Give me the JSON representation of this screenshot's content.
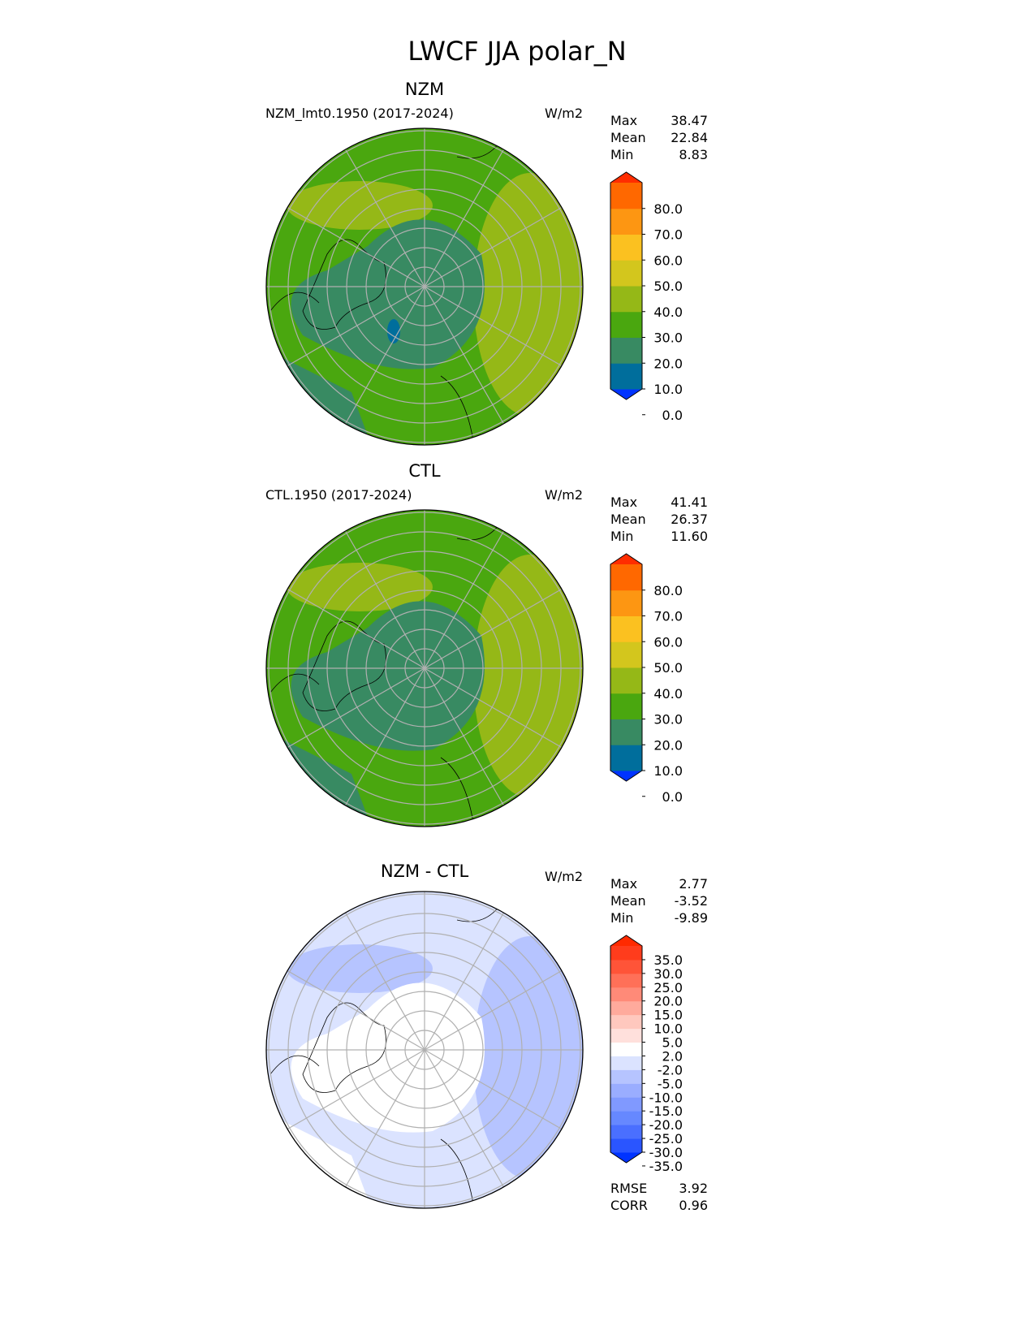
{
  "chart_data": {
    "type": "heatmap",
    "title": "LWCF JJA polar_N",
    "panels": [
      {
        "center_title": "NZM",
        "left_title": "NZM_lmt0.1950 (2017-2024)",
        "units": "W/m2",
        "stats": [
          {
            "label": "Max",
            "value": "38.47"
          },
          {
            "label": "Mean",
            "value": "22.84"
          },
          {
            "label": "Min",
            "value": "8.83"
          }
        ],
        "colorbar": {
          "tick_labels": [
            "80.0",
            "70.0",
            "60.0",
            "50.0",
            "40.0",
            "30.0",
            "20.0",
            "10.0",
            "0.0"
          ],
          "colors": [
            "#0033ff",
            "#006e9c",
            "#388a62",
            "#4aa70f",
            "#95b817",
            "#d3c61d",
            "#fbc120",
            "#fd9612",
            "#ff6800",
            "#ff2d00"
          ]
        },
        "fields": {
          "base": "#4aa70f",
          "inner": "#388a62",
          "high": "#95b817",
          "low": "#006e9c"
        }
      },
      {
        "center_title": "CTL",
        "left_title": "CTL.1950 (2017-2024)",
        "units": "W/m2",
        "stats": [
          {
            "label": "Max",
            "value": "41.41"
          },
          {
            "label": "Mean",
            "value": "26.37"
          },
          {
            "label": "Min",
            "value": "11.60"
          }
        ],
        "colorbar": {
          "tick_labels": [
            "80.0",
            "70.0",
            "60.0",
            "50.0",
            "40.0",
            "30.0",
            "20.0",
            "10.0",
            "0.0"
          ],
          "colors": [
            "#0033ff",
            "#006e9c",
            "#388a62",
            "#4aa70f",
            "#95b817",
            "#d3c61d",
            "#fbc120",
            "#fd9612",
            "#ff6800",
            "#ff2d00"
          ]
        },
        "fields": {
          "base": "#4aa70f",
          "inner": "#388a62",
          "high": "#95b817",
          "low": "#388a62"
        }
      },
      {
        "center_title": "NZM - CTL",
        "left_title": "",
        "units": "W/m2",
        "stats": [
          {
            "label": "Max",
            "value": "2.77"
          },
          {
            "label": "Mean",
            "value": "-3.52"
          },
          {
            "label": "Min",
            "value": "-9.89"
          }
        ],
        "colorbar": {
          "tick_labels": [
            "35.0",
            "30.0",
            "25.0",
            "20.0",
            "15.0",
            "10.0",
            "5.0",
            "2.0",
            "-2.0",
            "-5.0",
            "-10.0",
            "-15.0",
            "-20.0",
            "-25.0",
            "-30.0",
            "-35.0"
          ],
          "colors": [
            "#0033ff",
            "#2a55ff",
            "#4a6fff",
            "#6688ff",
            "#8099ff",
            "#9aadff",
            "#b6c4ff",
            "#dbe3ff",
            "#ffffff",
            "#ffe0dc",
            "#ffc8be",
            "#ffaa9c",
            "#ff8a78",
            "#ff7058",
            "#ff5438",
            "#ff3c1c",
            "#ff2a00"
          ]
        },
        "fields": {
          "base": "#dbe3ff",
          "inner": "#ffffff",
          "high": "#b6c4ff",
          "low": "#ffffff"
        },
        "metrics": [
          {
            "label": "RMSE",
            "value": "3.92"
          },
          {
            "label": "CORR",
            "value": "0.96"
          }
        ]
      }
    ]
  }
}
